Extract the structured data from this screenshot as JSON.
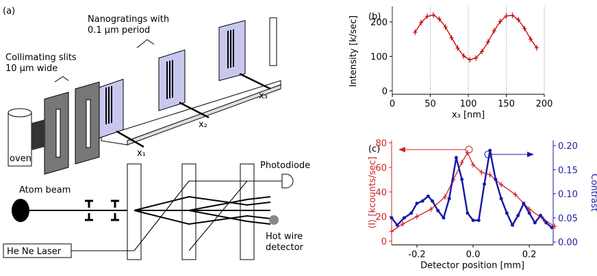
{
  "diagram": {
    "panel_label": "(a)",
    "nanogratings": [
      "Nanogratings with",
      "0.1 µm period"
    ],
    "collimating": [
      "Collimating slits",
      "10 µm wide"
    ],
    "oven": "oven",
    "axes": [
      "x₁",
      "x₂",
      "x₃"
    ],
    "atom_beam": "Atom beam",
    "laser": "He Ne Laser",
    "photodiode": "Photodiode",
    "detector": [
      "Hot wire",
      "detector"
    ]
  },
  "chart_data": [
    {
      "type": "line",
      "panel_label": "(b)",
      "xlabel": "x₃ [nm]",
      "ylabel": "Intensity [k/sec]",
      "x": [
        30,
        38,
        46,
        54,
        62,
        70,
        78,
        86,
        94,
        102,
        110,
        118,
        126,
        134,
        142,
        150,
        158,
        166,
        174,
        182,
        190
      ],
      "series": [
        {
          "color": "#c00000",
          "values": [
            170,
            198,
            216,
            220,
            208,
            185,
            154,
            124,
            101,
            90,
            95,
            114,
            142,
            174,
            201,
            217,
            219,
            206,
            181,
            150,
            125
          ]
        }
      ],
      "xlim": [
        0,
        200
      ],
      "ylim": [
        -10,
        245
      ],
      "xticks": [
        0,
        50,
        100,
        150,
        200
      ],
      "yticks": [
        0,
        100,
        200
      ],
      "grid": "x"
    },
    {
      "type": "line",
      "panel_label": "(c)",
      "xlabel": "Detector position [mm]",
      "ylabel": "⟨I⟩  [kcounts/sec]",
      "y2label": "Contrast",
      "series": [
        {
          "color": "#d02020",
          "axis": "y",
          "x": [
            -0.29,
            -0.25,
            -0.2,
            -0.15,
            -0.1,
            -0.07,
            -0.04,
            -0.02,
            0.0,
            0.03,
            0.06,
            0.1,
            0.15,
            0.2,
            0.25,
            0.29
          ],
          "values": [
            8,
            14,
            20,
            26,
            36,
            50,
            64,
            72,
            62,
            56,
            54,
            46,
            38,
            26,
            18,
            12
          ]
        },
        {
          "color": "#1a1aaa",
          "axis": "y2",
          "markers": true,
          "x": [
            -0.29,
            -0.27,
            -0.245,
            -0.22,
            -0.2,
            -0.18,
            -0.16,
            -0.145,
            -0.125,
            -0.105,
            -0.085,
            -0.06,
            -0.04,
            -0.02,
            0.0,
            0.02,
            0.04,
            0.06,
            0.08,
            0.1,
            0.12,
            0.14,
            0.16,
            0.18,
            0.2,
            0.22,
            0.24,
            0.26,
            0.28
          ],
          "values": [
            0.05,
            0.035,
            0.05,
            0.06,
            0.08,
            0.085,
            0.095,
            0.085,
            0.065,
            0.05,
            0.09,
            0.175,
            0.13,
            0.06,
            0.045,
            0.045,
            0.12,
            0.19,
            0.13,
            0.09,
            0.06,
            0.035,
            0.055,
            0.08,
            0.06,
            0.04,
            0.055,
            0.04,
            0.03
          ]
        }
      ],
      "xlim": [
        -0.29,
        0.285
      ],
      "ylim": [
        -3,
        82
      ],
      "y2lim": [
        -0.006,
        0.211
      ],
      "xticks": [
        -0.2,
        {
          "value": 0,
          "label": "0.0"
        },
        0.2
      ],
      "yticks": [
        0,
        20,
        40,
        60,
        80
      ],
      "y2ticks": [
        {
          "value": 0,
          "label": "0.00"
        },
        {
          "value": 0.05,
          "label": "0.05"
        },
        {
          "value": 0.1,
          "label": "0.10"
        },
        {
          "value": 0.15,
          "label": "0.15"
        },
        {
          "value": 0.2,
          "label": "0.20"
        }
      ]
    }
  ]
}
